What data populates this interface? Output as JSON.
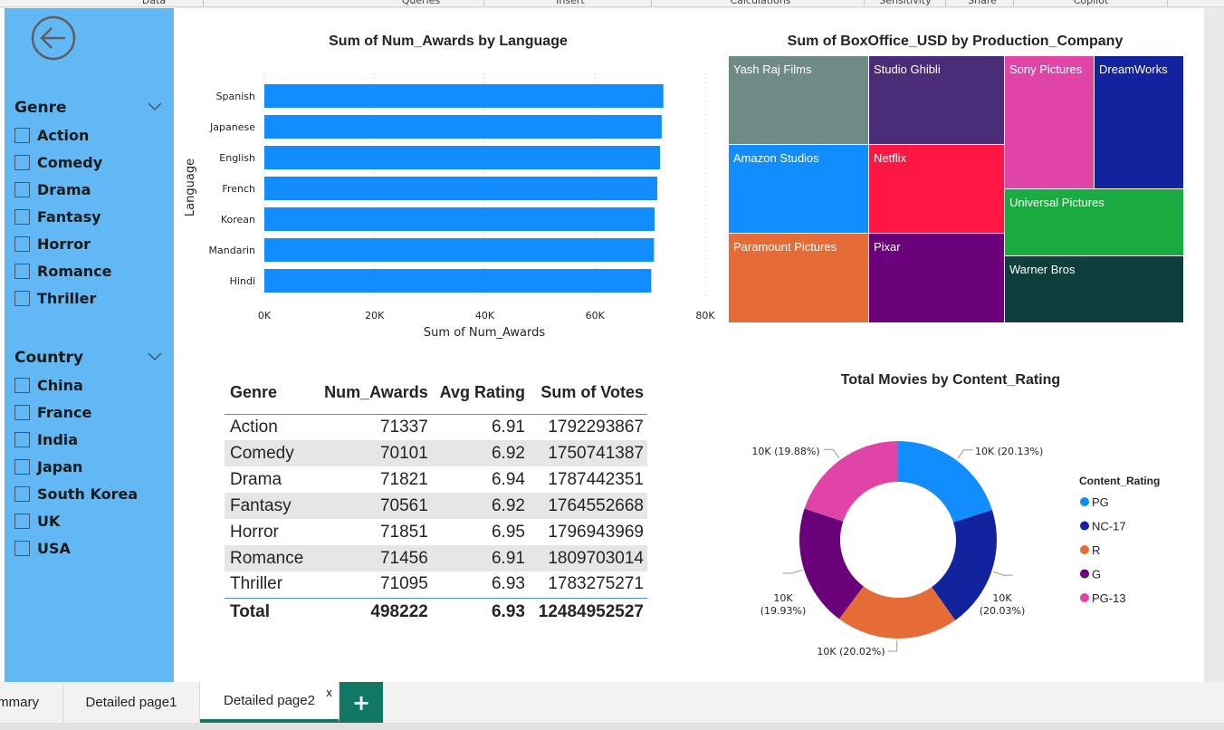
{
  "ribbon": {
    "groups": [
      {
        "label": "Data",
        "left": 120,
        "width": 100
      },
      {
        "label": "Queries",
        "left": 400,
        "width": 130
      },
      {
        "label": "Insert",
        "left": 545,
        "width": 170
      },
      {
        "label": "Calculations",
        "left": 730,
        "width": 220
      },
      {
        "label": "Sensitivity",
        "left": 960,
        "width": 80
      },
      {
        "label": "Share",
        "left": 1055,
        "width": 60
      },
      {
        "label": "Copilot",
        "left": 1125,
        "width": 160
      }
    ]
  },
  "slicers": {
    "genre": {
      "title": "Genre",
      "items": [
        "Action",
        "Comedy",
        "Drama",
        "Fantasy",
        "Horror",
        "Romance",
        "Thriller"
      ]
    },
    "country": {
      "title": "Country",
      "items": [
        "China",
        "France",
        "India",
        "Japan",
        "South Korea",
        "UK",
        "USA"
      ]
    }
  },
  "bar_chart": {
    "title": "Sum of Num_Awards by Language",
    "xlabel": "Sum of Num_Awards",
    "ylabel": "Language",
    "color": "#118dff"
  },
  "treemap": {
    "title": "Sum of BoxOffice_USD by Production_Company"
  },
  "donut": {
    "title": "Total Movies by Content_Rating",
    "legend_title": "Content_Rating"
  },
  "table": {
    "headers": [
      "Genre",
      "Num_Awards",
      "Avg Rating",
      "Sum of Votes"
    ],
    "rows": [
      [
        "Action",
        "71337",
        "6.91",
        "1792293867"
      ],
      [
        "Comedy",
        "70101",
        "6.92",
        "1750741387"
      ],
      [
        "Drama",
        "71821",
        "6.94",
        "1787442351"
      ],
      [
        "Fantasy",
        "70561",
        "6.92",
        "1764552668"
      ],
      [
        "Horror",
        "71851",
        "6.95",
        "1796943969"
      ],
      [
        "Romance",
        "71456",
        "6.91",
        "1809703014"
      ],
      [
        "Thriller",
        "71095",
        "6.93",
        "1783275271"
      ]
    ],
    "total": [
      "Total",
      "498222",
      "6.93",
      "12484952527"
    ]
  },
  "tabs": {
    "items": [
      "mmary",
      "Detailed page1",
      "Detailed page2"
    ],
    "close": "x",
    "add": "+"
  },
  "chart_data": [
    {
      "type": "bar",
      "title": "Sum of Num_Awards by Language",
      "categories": [
        "Spanish",
        "Japanese",
        "English",
        "French",
        "Korean",
        "Mandarin",
        "Hindi"
      ],
      "values": [
        72400,
        72100,
        71800,
        71300,
        70800,
        70700,
        70200
      ],
      "xlabel": "Sum of Num_Awards",
      "ylabel": "Language",
      "xlim": [
        0,
        80000
      ],
      "xticks": [
        "0K",
        "20K",
        "40K",
        "60K",
        "80K"
      ],
      "grid": true
    },
    {
      "type": "treemap",
      "title": "Sum of BoxOffice_USD by Production_Company",
      "items": [
        {
          "name": "Yash Raj Films",
          "color": "#6e8b87"
        },
        {
          "name": "Studio Ghibli",
          "color": "#4b2c79"
        },
        {
          "name": "Sony Pictures",
          "color": "#e044a7"
        },
        {
          "name": "DreamWorks",
          "color": "#12239e"
        },
        {
          "name": "Amazon Studios",
          "color": "#118dff"
        },
        {
          "name": "Netflix",
          "color": "#ff1744"
        },
        {
          "name": "Universal Pictures",
          "color": "#1aab40"
        },
        {
          "name": "Paramount Pictures",
          "color": "#e66c37"
        },
        {
          "name": "Pixar",
          "color": "#6b007b"
        },
        {
          "name": "Warner Bros",
          "color": "#0e3f3c"
        }
      ]
    },
    {
      "type": "pie",
      "title": "Total Movies by Content_Rating",
      "legend_title": "Content_Rating",
      "legend_position": "right",
      "slices": [
        {
          "name": "PG",
          "value": 20.13,
          "label": "10K (20.13%)",
          "color": "#118dff"
        },
        {
          "name": "NC-17",
          "value": 20.03,
          "label": "10K (20.03%)",
          "color": "#12239e"
        },
        {
          "name": "R",
          "value": 20.02,
          "label": "10K (20.02%)",
          "color": "#e66c37"
        },
        {
          "name": "G",
          "value": 19.93,
          "label": "10K (19.93%)",
          "color": "#6b007b"
        },
        {
          "name": "PG-13",
          "value": 19.88,
          "label": "10K (19.88%)",
          "color": "#e044a7"
        }
      ]
    }
  ]
}
